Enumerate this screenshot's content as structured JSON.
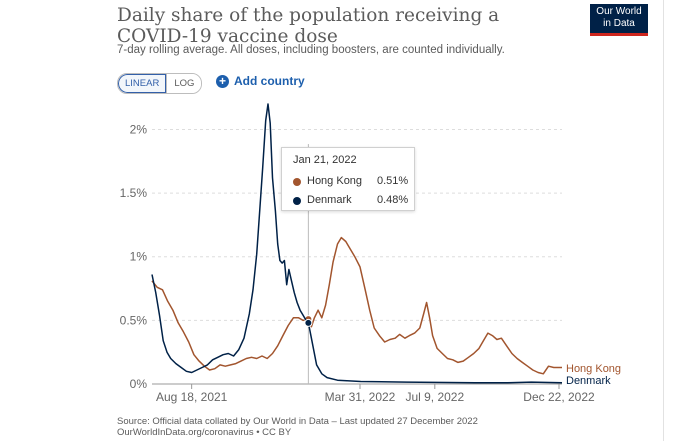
{
  "header": {
    "title": "Daily share of the population receiving a COVID-19 vaccine dose",
    "subtitle": "7-day rolling average. All doses, including boosters, are counted individually.",
    "logo_line1": "Our World",
    "logo_line2": "in Data"
  },
  "controls": {
    "linear_label": "LINEAR",
    "log_label": "LOG",
    "add_country_label": "Add country"
  },
  "tooltip": {
    "date": "Jan 21, 2022",
    "rows": [
      {
        "name": "Hong Kong",
        "value": "0.51%"
      },
      {
        "name": "Denmark",
        "value": "0.48%"
      }
    ]
  },
  "footer": {
    "source_line1": "Source: Official data collated by Our World in Data – Last updated 27 December 2022",
    "source_line2": "OurWorldInData.org/coronavirus • CC BY"
  },
  "chart_data": {
    "type": "line",
    "title": "Daily share of the population receiving a COVID-19 vaccine dose",
    "subtitle": "7-day rolling average. All doses, including boosters, are counted individually.",
    "x_domain": [
      "2021-06-26",
      "2022-12-26"
    ],
    "x_ticks": [
      {
        "date": "2021-08-18",
        "label": "Aug 18, 2021"
      },
      {
        "date": "2022-03-31",
        "label": "Mar 31, 2022"
      },
      {
        "date": "2022-07-09",
        "label": "Jul 9, 2022"
      },
      {
        "date": "2022-12-22",
        "label": "Dec 22, 2022"
      }
    ],
    "y_ticks": [
      {
        "value": 0,
        "label": "0%"
      },
      {
        "value": 0.5,
        "label": "0.5%"
      },
      {
        "value": 1,
        "label": "1%"
      },
      {
        "value": 1.5,
        "label": "1.5%"
      },
      {
        "value": 2,
        "label": "2%"
      }
    ],
    "ylim": [
      0,
      2.2
    ],
    "grid": "horizontal",
    "hover_date": "2022-01-21",
    "series": [
      {
        "name": "Hong Kong",
        "color": "#a2552e",
        "points": [
          [
            "2021-06-26",
            0.81
          ],
          [
            "2021-07-03",
            0.76
          ],
          [
            "2021-07-10",
            0.74
          ],
          [
            "2021-07-17",
            0.65
          ],
          [
            "2021-07-24",
            0.58
          ],
          [
            "2021-07-31",
            0.48
          ],
          [
            "2021-08-07",
            0.41
          ],
          [
            "2021-08-14",
            0.33
          ],
          [
            "2021-08-21",
            0.23
          ],
          [
            "2021-08-28",
            0.18
          ],
          [
            "2021-09-04",
            0.14
          ],
          [
            "2021-09-11",
            0.11
          ],
          [
            "2021-09-18",
            0.12
          ],
          [
            "2021-09-25",
            0.15
          ],
          [
            "2021-10-02",
            0.14
          ],
          [
            "2021-10-09",
            0.15
          ],
          [
            "2021-10-16",
            0.16
          ],
          [
            "2021-10-23",
            0.18
          ],
          [
            "2021-10-30",
            0.2
          ],
          [
            "2021-11-06",
            0.21
          ],
          [
            "2021-11-13",
            0.2
          ],
          [
            "2021-11-20",
            0.22
          ],
          [
            "2021-11-27",
            0.2
          ],
          [
            "2021-12-04",
            0.24
          ],
          [
            "2021-12-11",
            0.3
          ],
          [
            "2021-12-18",
            0.38
          ],
          [
            "2021-12-25",
            0.46
          ],
          [
            "2022-01-01",
            0.52
          ],
          [
            "2022-01-08",
            0.52
          ],
          [
            "2022-01-14",
            0.5
          ],
          [
            "2022-01-21",
            0.51
          ],
          [
            "2022-01-25",
            0.45
          ],
          [
            "2022-01-29",
            0.52
          ],
          [
            "2022-02-03",
            0.58
          ],
          [
            "2022-02-08",
            0.52
          ],
          [
            "2022-02-13",
            0.62
          ],
          [
            "2022-02-18",
            0.78
          ],
          [
            "2022-02-23",
            0.96
          ],
          [
            "2022-03-01",
            1.1
          ],
          [
            "2022-03-06",
            1.15
          ],
          [
            "2022-03-12",
            1.12
          ],
          [
            "2022-03-18",
            1.06
          ],
          [
            "2022-03-24",
            1.0
          ],
          [
            "2022-03-31",
            0.92
          ],
          [
            "2022-04-07",
            0.74
          ],
          [
            "2022-04-13",
            0.58
          ],
          [
            "2022-04-19",
            0.44
          ],
          [
            "2022-04-26",
            0.38
          ],
          [
            "2022-05-03",
            0.33
          ],
          [
            "2022-05-10",
            0.35
          ],
          [
            "2022-05-17",
            0.36
          ],
          [
            "2022-05-23",
            0.39
          ],
          [
            "2022-05-30",
            0.36
          ],
          [
            "2022-06-05",
            0.38
          ],
          [
            "2022-06-12",
            0.4
          ],
          [
            "2022-06-19",
            0.44
          ],
          [
            "2022-06-24",
            0.55
          ],
          [
            "2022-06-28",
            0.64
          ],
          [
            "2022-07-02",
            0.52
          ],
          [
            "2022-07-06",
            0.38
          ],
          [
            "2022-07-12",
            0.28
          ],
          [
            "2022-07-19",
            0.24
          ],
          [
            "2022-07-26",
            0.2
          ],
          [
            "2022-08-02",
            0.19
          ],
          [
            "2022-08-09",
            0.17
          ],
          [
            "2022-08-16",
            0.18
          ],
          [
            "2022-08-23",
            0.21
          ],
          [
            "2022-08-30",
            0.24
          ],
          [
            "2022-09-06",
            0.28
          ],
          [
            "2022-09-12",
            0.34
          ],
          [
            "2022-09-18",
            0.4
          ],
          [
            "2022-09-24",
            0.38
          ],
          [
            "2022-09-30",
            0.35
          ],
          [
            "2022-10-06",
            0.36
          ],
          [
            "2022-10-13",
            0.3
          ],
          [
            "2022-10-20",
            0.24
          ],
          [
            "2022-10-27",
            0.2
          ],
          [
            "2022-11-03",
            0.17
          ],
          [
            "2022-11-10",
            0.14
          ],
          [
            "2022-11-17",
            0.11
          ],
          [
            "2022-11-24",
            0.09
          ],
          [
            "2022-12-01",
            0.08
          ],
          [
            "2022-12-08",
            0.14
          ],
          [
            "2022-12-15",
            0.13
          ],
          [
            "2022-12-22",
            0.13
          ],
          [
            "2022-12-26",
            0.13
          ]
        ]
      },
      {
        "name": "Denmark",
        "color": "#002147",
        "points": [
          [
            "2021-06-26",
            0.86
          ],
          [
            "2021-07-01",
            0.72
          ],
          [
            "2021-07-06",
            0.54
          ],
          [
            "2021-07-11",
            0.34
          ],
          [
            "2021-07-16",
            0.25
          ],
          [
            "2021-07-21",
            0.2
          ],
          [
            "2021-07-28",
            0.16
          ],
          [
            "2021-08-04",
            0.13
          ],
          [
            "2021-08-11",
            0.1
          ],
          [
            "2021-08-18",
            0.09
          ],
          [
            "2021-08-25",
            0.11
          ],
          [
            "2021-09-01",
            0.13
          ],
          [
            "2021-09-08",
            0.15
          ],
          [
            "2021-09-15",
            0.19
          ],
          [
            "2021-09-22",
            0.21
          ],
          [
            "2021-09-29",
            0.23
          ],
          [
            "2021-10-06",
            0.24
          ],
          [
            "2021-10-13",
            0.22
          ],
          [
            "2021-10-20",
            0.27
          ],
          [
            "2021-10-27",
            0.36
          ],
          [
            "2021-11-03",
            0.55
          ],
          [
            "2021-11-08",
            0.74
          ],
          [
            "2021-11-13",
            1.02
          ],
          [
            "2021-11-17",
            1.36
          ],
          [
            "2021-11-21",
            1.7
          ],
          [
            "2021-11-25",
            2.07
          ],
          [
            "2021-11-28",
            2.2
          ],
          [
            "2021-12-01",
            2.05
          ],
          [
            "2021-12-04",
            1.62
          ],
          [
            "2021-12-08",
            1.36
          ],
          [
            "2021-12-11",
            1.1
          ],
          [
            "2021-12-14",
            0.97
          ],
          [
            "2021-12-17",
            0.95
          ],
          [
            "2021-12-20",
            0.97
          ],
          [
            "2021-12-23",
            0.78
          ],
          [
            "2021-12-26",
            0.9
          ],
          [
            "2021-12-29",
            0.82
          ],
          [
            "2022-01-02",
            0.72
          ],
          [
            "2022-01-06",
            0.64
          ],
          [
            "2022-01-10",
            0.58
          ],
          [
            "2022-01-14",
            0.54
          ],
          [
            "2022-01-18",
            0.5
          ],
          [
            "2022-01-21",
            0.48
          ],
          [
            "2022-01-25",
            0.36
          ],
          [
            "2022-02-01",
            0.15
          ],
          [
            "2022-02-08",
            0.08
          ],
          [
            "2022-02-15",
            0.05
          ],
          [
            "2022-03-01",
            0.03
          ],
          [
            "2022-04-01",
            0.02
          ],
          [
            "2022-06-01",
            0.015
          ],
          [
            "2022-09-01",
            0.01
          ],
          [
            "2022-10-15",
            0.01
          ],
          [
            "2022-11-15",
            0.015
          ],
          [
            "2022-12-26",
            0.01
          ]
        ]
      }
    ]
  }
}
